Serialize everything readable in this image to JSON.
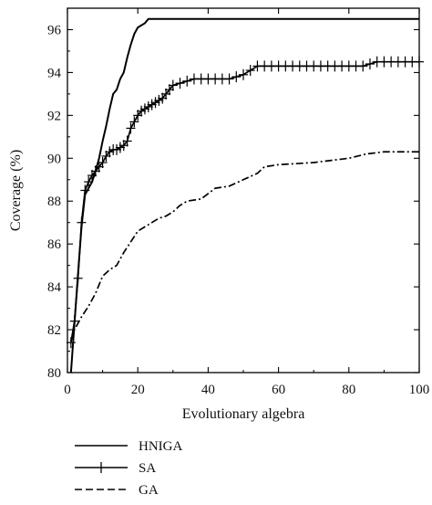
{
  "chart_data": {
    "type": "line",
    "xlabel": "Evolutionary algebra",
    "ylabel": "Coverage (%)",
    "xlim": [
      0,
      100
    ],
    "ylim": [
      80,
      97
    ],
    "xticks": [
      0,
      20,
      40,
      60,
      80,
      100
    ],
    "yticks": [
      80,
      82,
      84,
      86,
      88,
      90,
      92,
      94,
      96
    ],
    "grid": false,
    "legend_position": "bottom-left",
    "series": [
      {
        "name": "HNIGA",
        "style": "solid",
        "color": "#000000",
        "x": [
          1,
          2,
          3,
          4,
          5,
          6,
          7,
          8,
          9,
          10,
          11,
          12,
          13,
          14,
          15,
          16,
          17,
          18,
          19,
          20,
          21,
          22,
          23,
          30,
          40,
          50,
          60,
          70,
          80,
          90,
          100
        ],
        "y": [
          80.0,
          82.3,
          84.6,
          86.8,
          88.3,
          88.6,
          88.9,
          89.4,
          90.0,
          90.8,
          91.5,
          92.3,
          93.0,
          93.2,
          93.7,
          94.0,
          94.7,
          95.3,
          95.8,
          96.1,
          96.2,
          96.3,
          96.5,
          96.5,
          96.5,
          96.5,
          96.5,
          96.5,
          96.5,
          96.5,
          96.5
        ]
      },
      {
        "name": "SA",
        "style": "solid-with-plus-markers",
        "color": "#000000",
        "x": [
          1,
          2,
          3,
          4,
          5,
          6,
          7,
          8,
          9,
          10,
          11,
          12,
          13,
          14,
          15,
          16,
          17,
          18,
          19,
          20,
          21,
          22,
          23,
          24,
          25,
          26,
          27,
          28,
          29,
          30,
          32,
          34,
          36,
          38,
          40,
          42,
          44,
          46,
          48,
          50,
          52,
          54,
          56,
          58,
          60,
          62,
          64,
          66,
          68,
          70,
          72,
          74,
          76,
          78,
          80,
          82,
          84,
          86,
          88,
          90,
          92,
          94,
          96,
          98,
          100
        ],
        "y": [
          81.4,
          82.4,
          84.4,
          87.0,
          88.5,
          88.9,
          89.2,
          89.4,
          89.6,
          89.8,
          90.1,
          90.3,
          90.4,
          90.4,
          90.5,
          90.6,
          90.8,
          91.4,
          91.7,
          92.0,
          92.2,
          92.3,
          92.4,
          92.5,
          92.6,
          92.7,
          92.8,
          93.0,
          93.2,
          93.4,
          93.5,
          93.6,
          93.7,
          93.7,
          93.7,
          93.7,
          93.7,
          93.7,
          93.8,
          93.9,
          94.1,
          94.3,
          94.3,
          94.3,
          94.3,
          94.3,
          94.3,
          94.3,
          94.3,
          94.3,
          94.3,
          94.3,
          94.3,
          94.3,
          94.3,
          94.3,
          94.3,
          94.4,
          94.5,
          94.5,
          94.5,
          94.5,
          94.5,
          94.5,
          94.5
        ]
      },
      {
        "name": "GA",
        "style": "dashed",
        "color": "#000000",
        "x": [
          1,
          2,
          4,
          6,
          8,
          10,
          12,
          14,
          16,
          18,
          20,
          22,
          24,
          26,
          28,
          30,
          32,
          34,
          38,
          42,
          46,
          50,
          54,
          56,
          60,
          70,
          80,
          85,
          90,
          95,
          100
        ],
        "y": [
          81.5,
          82.0,
          82.6,
          83.1,
          83.7,
          84.5,
          84.8,
          85.0,
          85.6,
          86.1,
          86.6,
          86.8,
          87.0,
          87.2,
          87.3,
          87.5,
          87.8,
          88.0,
          88.1,
          88.6,
          88.7,
          89.0,
          89.3,
          89.6,
          89.7,
          89.8,
          90.0,
          90.2,
          90.3,
          90.3,
          90.3
        ]
      }
    ]
  }
}
